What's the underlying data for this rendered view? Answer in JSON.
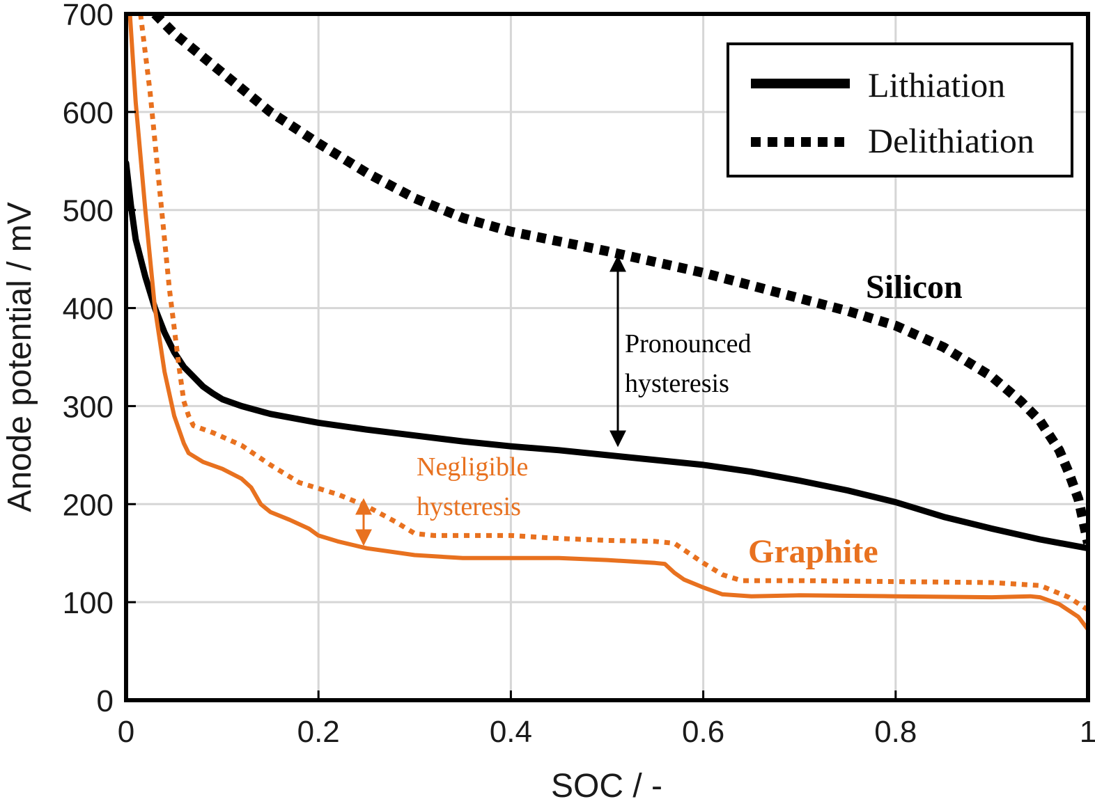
{
  "chart_data": {
    "type": "line",
    "xlabel": "SOC / -",
    "ylabel": "Anode potential / mV",
    "xlim": [
      0,
      1
    ],
    "ylim": [
      0,
      700
    ],
    "x_ticks": [
      "0",
      "0.2",
      "0.4",
      "0.6",
      "0.8",
      "1"
    ],
    "y_ticks": [
      "0",
      "100",
      "200",
      "300",
      "400",
      "500",
      "600",
      "700"
    ],
    "x_tick_values": [
      0,
      0.2,
      0.4,
      0.6,
      0.8,
      1
    ],
    "y_tick_values": [
      0,
      100,
      200,
      300,
      400,
      500,
      600,
      700
    ],
    "grid": true,
    "legend": {
      "placement": "top-right",
      "entries": [
        {
          "label": "Lithiation",
          "style": "solid"
        },
        {
          "label": "Delithiation",
          "style": "dotted"
        }
      ]
    },
    "colors": {
      "silicon": "#000000",
      "graphite": "#e8711f",
      "grid": "#d6d6d6"
    },
    "series": [
      {
        "material": "silicon",
        "process": "lithiation",
        "style": "solid",
        "color": "#000000",
        "points": [
          [
            0,
            548
          ],
          [
            0.005,
            505
          ],
          [
            0.01,
            470
          ],
          [
            0.02,
            432
          ],
          [
            0.03,
            400
          ],
          [
            0.04,
            375
          ],
          [
            0.05,
            355
          ],
          [
            0.06,
            340
          ],
          [
            0.07,
            330
          ],
          [
            0.08,
            320
          ],
          [
            0.09,
            313
          ],
          [
            0.1,
            307
          ],
          [
            0.12,
            300
          ],
          [
            0.15,
            292
          ],
          [
            0.2,
            283
          ],
          [
            0.25,
            276
          ],
          [
            0.3,
            270
          ],
          [
            0.35,
            264
          ],
          [
            0.4,
            259
          ],
          [
            0.45,
            255
          ],
          [
            0.5,
            250
          ],
          [
            0.55,
            245
          ],
          [
            0.6,
            240
          ],
          [
            0.65,
            233
          ],
          [
            0.7,
            224
          ],
          [
            0.75,
            214
          ],
          [
            0.8,
            202
          ],
          [
            0.85,
            187
          ],
          [
            0.9,
            175
          ],
          [
            0.95,
            164
          ],
          [
            1,
            155
          ]
        ]
      },
      {
        "material": "silicon",
        "process": "delithiation",
        "style": "dotted",
        "color": "#000000",
        "points": [
          [
            0.03,
            700
          ],
          [
            0.05,
            680
          ],
          [
            0.1,
            640
          ],
          [
            0.15,
            600
          ],
          [
            0.2,
            568
          ],
          [
            0.25,
            538
          ],
          [
            0.3,
            512
          ],
          [
            0.35,
            492
          ],
          [
            0.4,
            478
          ],
          [
            0.45,
            468
          ],
          [
            0.5,
            458
          ],
          [
            0.55,
            447
          ],
          [
            0.6,
            436
          ],
          [
            0.65,
            423
          ],
          [
            0.7,
            410
          ],
          [
            0.75,
            397
          ],
          [
            0.8,
            382
          ],
          [
            0.85,
            360
          ],
          [
            0.9,
            330
          ],
          [
            0.93,
            305
          ],
          [
            0.95,
            285
          ],
          [
            0.97,
            255
          ],
          [
            0.98,
            232
          ],
          [
            0.99,
            205
          ],
          [
            1,
            160
          ]
        ]
      },
      {
        "material": "graphite",
        "process": "lithiation",
        "style": "solid",
        "color": "#e8711f",
        "points": [
          [
            0.004,
            700
          ],
          [
            0.01,
            610
          ],
          [
            0.02,
            500
          ],
          [
            0.03,
            400
          ],
          [
            0.04,
            335
          ],
          [
            0.05,
            290
          ],
          [
            0.06,
            262
          ],
          [
            0.065,
            252
          ],
          [
            0.08,
            243
          ],
          [
            0.1,
            236
          ],
          [
            0.12,
            226
          ],
          [
            0.13,
            217
          ],
          [
            0.14,
            200
          ],
          [
            0.15,
            192
          ],
          [
            0.17,
            184
          ],
          [
            0.19,
            175
          ],
          [
            0.2,
            168
          ],
          [
            0.22,
            162
          ],
          [
            0.25,
            155
          ],
          [
            0.3,
            148
          ],
          [
            0.35,
            145
          ],
          [
            0.4,
            145
          ],
          [
            0.45,
            145
          ],
          [
            0.5,
            143
          ],
          [
            0.55,
            140
          ],
          [
            0.56,
            139
          ],
          [
            0.57,
            130
          ],
          [
            0.58,
            123
          ],
          [
            0.6,
            115
          ],
          [
            0.62,
            108
          ],
          [
            0.65,
            106
          ],
          [
            0.7,
            107
          ],
          [
            0.8,
            106
          ],
          [
            0.9,
            105
          ],
          [
            0.94,
            106
          ],
          [
            0.95,
            105
          ],
          [
            0.97,
            98
          ],
          [
            0.99,
            85
          ],
          [
            1,
            72
          ]
        ]
      },
      {
        "material": "graphite",
        "process": "delithiation",
        "style": "dotted",
        "color": "#e8711f",
        "points": [
          [
            0.015,
            700
          ],
          [
            0.025,
            620
          ],
          [
            0.035,
            520
          ],
          [
            0.045,
            420
          ],
          [
            0.055,
            340
          ],
          [
            0.06,
            305
          ],
          [
            0.065,
            290
          ],
          [
            0.07,
            280
          ],
          [
            0.09,
            273
          ],
          [
            0.12,
            260
          ],
          [
            0.15,
            240
          ],
          [
            0.18,
            222
          ],
          [
            0.22,
            210
          ],
          [
            0.25,
            198
          ],
          [
            0.28,
            182
          ],
          [
            0.3,
            170
          ],
          [
            0.32,
            168
          ],
          [
            0.35,
            168
          ],
          [
            0.4,
            168
          ],
          [
            0.45,
            165
          ],
          [
            0.5,
            163
          ],
          [
            0.55,
            162
          ],
          [
            0.57,
            160
          ],
          [
            0.6,
            140
          ],
          [
            0.62,
            128
          ],
          [
            0.64,
            122
          ],
          [
            0.7,
            122
          ],
          [
            0.8,
            121
          ],
          [
            0.9,
            120
          ],
          [
            0.95,
            117
          ],
          [
            0.98,
            105
          ],
          [
            1,
            92
          ]
        ]
      }
    ],
    "annotations": [
      {
        "id": "silicon",
        "text": "Silicon",
        "color": "#000000"
      },
      {
        "id": "graphite",
        "text": "Graphite",
        "color": "#e8711f"
      },
      {
        "id": "pronounced",
        "lines": [
          "Pronounced",
          "hysteresis"
        ],
        "color": "#000000",
        "arrow_x": 0.51,
        "arrow_y": [
          463,
          260
        ]
      },
      {
        "id": "negligible",
        "lines": [
          "Negligible",
          "hysteresis"
        ],
        "color": "#e8711f",
        "arrow_x": 0.247,
        "arrow_y": [
          203,
          157
        ]
      }
    ]
  }
}
